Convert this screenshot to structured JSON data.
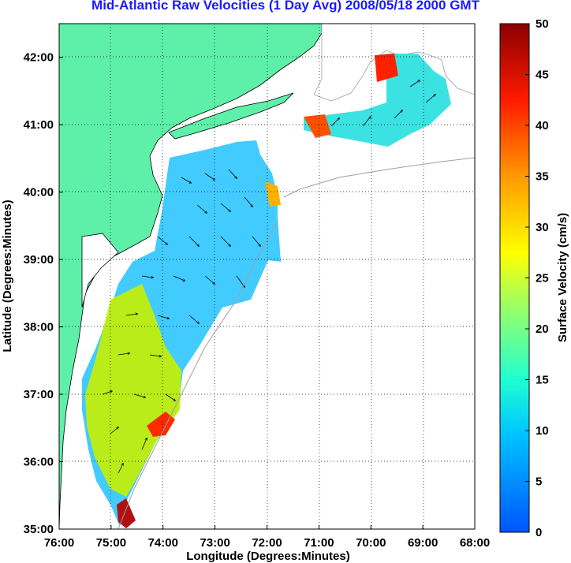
{
  "title": "Mid-Atlantic Raw Velocities (1 Day Avg) 2008/05/18 2000 GMT",
  "x_axis": {
    "label": "Longitude (Degrees:Minutes)",
    "ticks": [
      "76:00",
      "75:00",
      "74:00",
      "73:00",
      "72:00",
      "71:00",
      "70:00",
      "69:00",
      "68:00"
    ]
  },
  "y_axis": {
    "label": "Latitude (Degrees:Minutes)",
    "ticks": [
      "35:00",
      "36:00",
      "37:00",
      "38:00",
      "39:00",
      "40:00",
      "41:00",
      "42:00"
    ]
  },
  "colorbar": {
    "label": "Surface Velocity (cm/s)",
    "ticks": [
      "0",
      "5",
      "10",
      "15",
      "20",
      "25",
      "30",
      "35",
      "40",
      "45",
      "50"
    ],
    "range": [
      0,
      50
    ]
  },
  "map_extent": {
    "lon_range": [
      -76,
      -68
    ],
    "lat_range": [
      35,
      42.5
    ],
    "grid": "dotted"
  },
  "colors": {
    "land": "#5ef0a8",
    "ocean": "#ffffff",
    "title": "#1a1aff",
    "coastline": "#000000",
    "bathymetry": "#a0a0a0"
  }
}
